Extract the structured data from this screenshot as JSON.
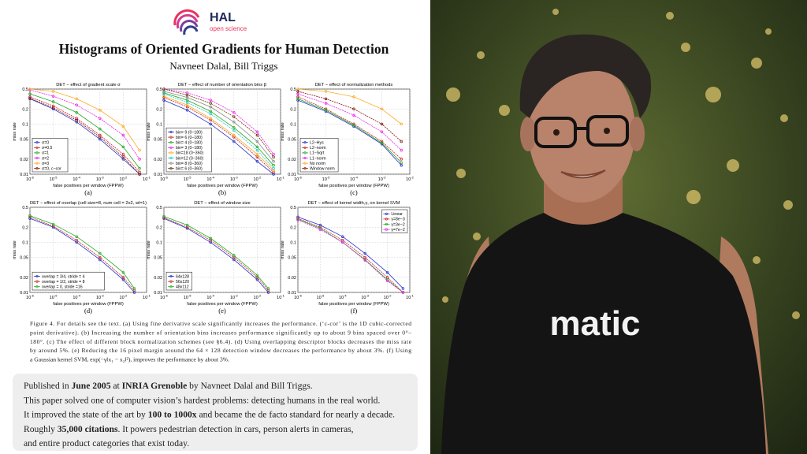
{
  "header": {
    "logo": "HAL",
    "logo_sub": "open science",
    "title": "Histograms of Oriented Gradients for Human Detection",
    "authors": "Navneet Dalal, Bill Triggs"
  },
  "chart_data": [
    {
      "type": "line",
      "title": "DET − effect of gradient scale σ",
      "xlabel": "false positives per window (FPPW)",
      "ylabel": "miss rate",
      "sublabel": "(a)",
      "xscale": "log",
      "yscale": "log",
      "grid": true,
      "legend": "lower-left",
      "xlim": [
        1e-06,
        0.1
      ],
      "ylim": [
        0.01,
        0.5
      ],
      "xticks": [
        {
          "value": 1e-06,
          "label": "10^-6"
        },
        {
          "value": 1e-05,
          "label": "10^-5"
        },
        {
          "value": 0.0001,
          "label": "10^-4"
        },
        {
          "value": 0.001,
          "label": "10^-3"
        },
        {
          "value": 0.01,
          "label": "10^-2"
        },
        {
          "value": 0.1,
          "label": "10^-1"
        }
      ],
      "yticks": [
        0.01,
        0.02,
        0.05,
        0.1,
        0.2,
        0.5
      ],
      "x": [
        1e-06,
        1e-05,
        0.0001,
        0.001,
        0.01,
        0.05
      ],
      "series": [
        {
          "name": "σ=0",
          "color": "#2233cc",
          "values": [
            0.32,
            0.2,
            0.11,
            0.05,
            0.02,
            0.01
          ]
        },
        {
          "name": "σ=0.5",
          "color": "#cc2222",
          "values": [
            0.35,
            0.23,
            0.13,
            0.06,
            0.025,
            0.011
          ]
        },
        {
          "name": "σ=1",
          "color": "#22aa22",
          "values": [
            0.4,
            0.28,
            0.17,
            0.08,
            0.035,
            0.013
          ]
        },
        {
          "name": "σ=2",
          "color": "#ee22ee",
          "values": [
            0.48,
            0.36,
            0.24,
            0.13,
            0.06,
            0.02
          ]
        },
        {
          "name": "σ=3",
          "color": "#ffaa22",
          "values": [
            0.5,
            0.45,
            0.32,
            0.19,
            0.09,
            0.03
          ]
        },
        {
          "name": "σ=0, c−cor",
          "color": "#881111",
          "values": [
            0.33,
            0.21,
            0.12,
            0.055,
            0.022,
            0.01
          ]
        }
      ]
    },
    {
      "type": "line",
      "title": "DET − effect of number of orientation bins β",
      "xlabel": "false positives per window (FPPW)",
      "ylabel": "miss rate",
      "sublabel": "(b)",
      "xscale": "log",
      "yscale": "log",
      "grid": true,
      "legend": "lower-left",
      "xlim": [
        1e-06,
        0.1
      ],
      "ylim": [
        0.01,
        0.5
      ],
      "xticks": [
        {
          "value": 1e-06,
          "label": "10^-6"
        },
        {
          "value": 1e-05,
          "label": "10^-5"
        },
        {
          "value": 0.0001,
          "label": "10^-4"
        },
        {
          "value": 0.001,
          "label": "10^-3"
        },
        {
          "value": 0.01,
          "label": "10^-2"
        },
        {
          "value": 0.1,
          "label": "10^-1"
        }
      ],
      "yticks": [
        0.01,
        0.02,
        0.05,
        0.1,
        0.2,
        0.5
      ],
      "x": [
        1e-06,
        1e-05,
        0.0001,
        0.001,
        0.01,
        0.05
      ],
      "series": [
        {
          "name": "bin= 9 (0−180)",
          "color": "#2233cc",
          "values": [
            0.3,
            0.19,
            0.1,
            0.045,
            0.018,
            0.01
          ]
        },
        {
          "name": "bin= 6 (0−180)",
          "color": "#cc2222",
          "values": [
            0.34,
            0.22,
            0.12,
            0.055,
            0.022,
            0.011
          ]
        },
        {
          "name": "bin= 4 (0−180)",
          "color": "#22aa22",
          "values": [
            0.42,
            0.3,
            0.18,
            0.085,
            0.035,
            0.015
          ]
        },
        {
          "name": "bin= 3 (0−180)",
          "color": "#ee22ee",
          "values": [
            0.5,
            0.42,
            0.3,
            0.17,
            0.07,
            0.025
          ]
        },
        {
          "name": "bin=18 (0−360)",
          "color": "#ffaa22",
          "values": [
            0.36,
            0.24,
            0.13,
            0.06,
            0.025,
            0.012
          ]
        },
        {
          "name": "bin=12 (0−360)",
          "color": "#22cccc",
          "values": [
            0.4,
            0.27,
            0.16,
            0.075,
            0.03,
            0.013
          ]
        },
        {
          "name": "bin= 8 (0−360)",
          "color": "#888888",
          "values": [
            0.45,
            0.34,
            0.22,
            0.11,
            0.045,
            0.018
          ]
        },
        {
          "name": "bin= 6 (0−360)",
          "color": "#663300",
          "values": [
            0.5,
            0.38,
            0.26,
            0.14,
            0.06,
            0.022
          ]
        }
      ]
    },
    {
      "type": "line",
      "title": "DET − effect of normalization methods",
      "xlabel": "false positives per window (FPPW)",
      "ylabel": "miss rate",
      "sublabel": "(c)",
      "xscale": "log",
      "yscale": "log",
      "grid": true,
      "legend": "lower-left",
      "xlim": [
        1e-06,
        0.01
      ],
      "ylim": [
        0.01,
        0.5
      ],
      "xticks": [
        {
          "value": 1e-06,
          "label": "10^-6"
        },
        {
          "value": 1e-05,
          "label": "10^-5"
        },
        {
          "value": 0.0001,
          "label": "10^-4"
        },
        {
          "value": 0.001,
          "label": "10^-3"
        },
        {
          "value": 0.01,
          "label": "10^-2"
        }
      ],
      "yticks": [
        0.01,
        0.02,
        0.05,
        0.1,
        0.2,
        0.5
      ],
      "x": [
        1e-06,
        1e-05,
        0.0001,
        0.001,
        0.005
      ],
      "series": [
        {
          "name": "L2−Hys",
          "color": "#2233cc",
          "values": [
            0.3,
            0.18,
            0.09,
            0.04,
            0.015
          ]
        },
        {
          "name": "L2−norm",
          "color": "#cc2222",
          "values": [
            0.35,
            0.2,
            0.1,
            0.045,
            0.02
          ]
        },
        {
          "name": "L1−Sqrt",
          "color": "#22aa22",
          "values": [
            0.32,
            0.19,
            0.095,
            0.042,
            0.017
          ]
        },
        {
          "name": "L1−norm",
          "color": "#ee22ee",
          "values": [
            0.4,
            0.26,
            0.15,
            0.07,
            0.03
          ]
        },
        {
          "name": "No norm",
          "color": "#ffaa22",
          "values": [
            0.5,
            0.45,
            0.35,
            0.2,
            0.1
          ]
        },
        {
          "name": "Window norm",
          "color": "#881111",
          "values": [
            0.45,
            0.32,
            0.2,
            0.1,
            0.045
          ]
        }
      ]
    },
    {
      "type": "line",
      "title": "DET − effect of overlap (cell size=8, num cell = 2x2, wl=1)",
      "xlabel": "false positives per window (FPPW)",
      "ylabel": "miss rate",
      "sublabel": "(d)",
      "xscale": "log",
      "yscale": "log",
      "grid": true,
      "legend": "lower-left",
      "xlim": [
        1e-06,
        0.1
      ],
      "ylim": [
        0.01,
        0.5
      ],
      "xticks": [
        {
          "value": 1e-06,
          "label": "10^-6"
        },
        {
          "value": 1e-05,
          "label": "10^-5"
        },
        {
          "value": 0.0001,
          "label": "10^-4"
        },
        {
          "value": 0.001,
          "label": "10^-3"
        },
        {
          "value": 0.01,
          "label": "10^-2"
        },
        {
          "value": 0.1,
          "label": "10^-1"
        }
      ],
      "yticks": [
        0.01,
        0.02,
        0.05,
        0.1,
        0.2,
        0.5
      ],
      "x": [
        1e-06,
        1e-05,
        0.0001,
        0.001,
        0.01,
        0.03
      ],
      "series": [
        {
          "name": "overlap = 3/4, stride = 4",
          "color": "#2233cc",
          "values": [
            0.3,
            0.2,
            0.1,
            0.045,
            0.018,
            0.01
          ]
        },
        {
          "name": "overlap = 1/2, stride = 8",
          "color": "#cc2222",
          "values": [
            0.32,
            0.21,
            0.11,
            0.05,
            0.02,
            0.011
          ]
        },
        {
          "name": "overlap = 0, stride =16",
          "color": "#22aa22",
          "values": [
            0.34,
            0.23,
            0.13,
            0.06,
            0.025,
            0.012
          ]
        }
      ]
    },
    {
      "type": "line",
      "title": "DET − effect of window size",
      "xlabel": "false positives per window (FPPW)",
      "ylabel": "miss rate",
      "sublabel": "(e)",
      "xscale": "log",
      "yscale": "log",
      "grid": true,
      "legend": "lower-left",
      "xlim": [
        1e-06,
        0.1
      ],
      "ylim": [
        0.01,
        0.5
      ],
      "xticks": [
        {
          "value": 1e-06,
          "label": "10^-6"
        },
        {
          "value": 1e-05,
          "label": "10^-5"
        },
        {
          "value": 0.0001,
          "label": "10^-4"
        },
        {
          "value": 0.001,
          "label": "10^-3"
        },
        {
          "value": 0.01,
          "label": "10^-2"
        },
        {
          "value": 0.1,
          "label": "10^-1"
        }
      ],
      "yticks": [
        0.01,
        0.02,
        0.05,
        0.1,
        0.2,
        0.5
      ],
      "x": [
        1e-06,
        1e-05,
        0.0001,
        0.001,
        0.01,
        0.03
      ],
      "series": [
        {
          "name": "64x128",
          "color": "#2233cc",
          "values": [
            0.3,
            0.19,
            0.1,
            0.045,
            0.018,
            0.01
          ]
        },
        {
          "name": "56x120",
          "color": "#cc2222",
          "values": [
            0.31,
            0.2,
            0.11,
            0.05,
            0.02,
            0.011
          ]
        },
        {
          "name": "48x112",
          "color": "#22aa22",
          "values": [
            0.33,
            0.22,
            0.12,
            0.055,
            0.022,
            0.012
          ]
        }
      ]
    },
    {
      "type": "line",
      "title": "DET − effect of kernel width,γ, on kernel SVM",
      "xlabel": "false positives per window (FPPW)",
      "ylabel": "miss rate",
      "sublabel": "(f)",
      "xscale": "log",
      "yscale": "log",
      "grid": true,
      "legend": "upper-right",
      "xlim": [
        1e-06,
        0.1
      ],
      "ylim": [
        0.01,
        0.5
      ],
      "xticks": [
        {
          "value": 1e-06,
          "label": "10^-6"
        },
        {
          "value": 1e-05,
          "label": "10^-5"
        },
        {
          "value": 0.0001,
          "label": "10^-4"
        },
        {
          "value": 0.001,
          "label": "10^-3"
        },
        {
          "value": 0.01,
          "label": "10^-2"
        },
        {
          "value": 0.1,
          "label": "10^-1"
        }
      ],
      "yticks": [
        0.01,
        0.02,
        0.05,
        0.1,
        0.2,
        0.5
      ],
      "x": [
        1e-06,
        1e-05,
        0.0001,
        0.001,
        0.01,
        0.05
      ],
      "series": [
        {
          "name": "Linear",
          "color": "#2233cc",
          "values": [
            0.32,
            0.22,
            0.13,
            0.06,
            0.025,
            0.012
          ]
        },
        {
          "name": "γ=8e−3",
          "color": "#cc2222",
          "values": [
            0.3,
            0.2,
            0.11,
            0.05,
            0.02,
            0.01
          ]
        },
        {
          "name": "γ=3e−2",
          "color": "#22aa22",
          "values": [
            0.29,
            0.19,
            0.1,
            0.045,
            0.018,
            0.01
          ]
        },
        {
          "name": "γ=7e−2",
          "color": "#ee22ee",
          "values": [
            0.28,
            0.18,
            0.1,
            0.044,
            0.017,
            0.01
          ]
        }
      ]
    }
  ],
  "caption": [
    "Figure 4. For details see the text. (a) Using fine derivative scale significantly increases the performance. (‘c-cor’ is the 1D cubic-corrected",
    "point derivative). (b) Increasing the number of orientation bins increases performance significantly up to about 9 bins spaced over 0°–",
    "180°. (c) The effect of different block normalization schemes (see §6.4). (d) Using overlapping descriptor blocks decreases the miss rate",
    "by around 5%. (e) Reducing the 16 pixel margin around the 64 × 128 detection window decreases the performance by about 3%. (f) Using",
    "a Gaussian kernel SVM, exp(−γ‖x₁ − x₂‖²), improves the performance by about 3%."
  ],
  "summary": [
    [
      {
        "text": "Published in ",
        "bold": false
      },
      {
        "text": "June 2005",
        "bold": true
      },
      {
        "text": " at ",
        "bold": false
      },
      {
        "text": "INRIA Grenoble",
        "bold": true
      },
      {
        "text": " by Navneet Dalal and Bill Triggs.",
        "bold": false
      }
    ],
    [
      {
        "text": "This paper solved one of computer vision’s hardest problems: detecting humans in the real world.",
        "bold": false
      }
    ],
    [
      {
        "text": "It improved the state of the art by ",
        "bold": false
      },
      {
        "text": "100 to 1000x",
        "bold": true
      },
      {
        "text": " and became the de facto standard for nearly a decade.",
        "bold": false
      }
    ],
    [
      {
        "text": "Roughly ",
        "bold": false
      },
      {
        "text": "35,000 citations",
        "bold": true
      },
      {
        "text": ". It powers pedestrian detection in cars, person alerts in cameras,",
        "bold": false
      }
    ],
    [
      {
        "text": "and entire product categories that exist today.",
        "bold": false
      }
    ]
  ],
  "photo": {
    "shirt_text": "matic"
  }
}
